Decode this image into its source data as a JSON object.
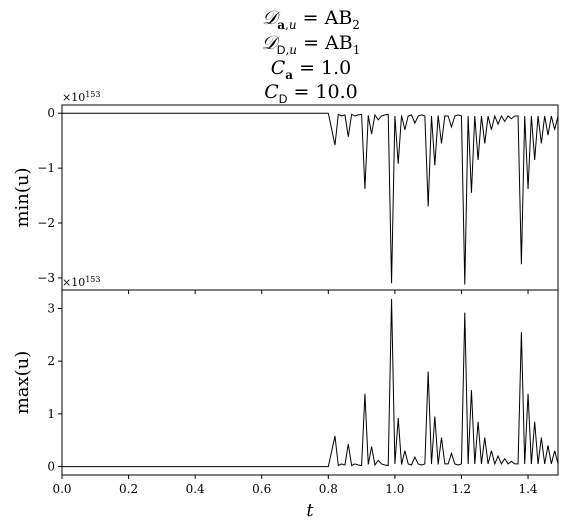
{
  "figure": {
    "title_lines": [
      "𝒟_a,u = AB₂",
      "𝒟_D,u = AB₁",
      "C_a = 1.0",
      "C_D = 10.0"
    ]
  },
  "chart_data": [
    {
      "type": "line",
      "name": "min",
      "ylabel": "min(u)",
      "xlabel": "",
      "offset_text": "×10^153",
      "offset_base": "×10",
      "offset_exp": "153",
      "xlim": [
        0.0,
        1.49
      ],
      "ylim": [
        -3.22,
        0.15
      ],
      "yticks": [
        0,
        -1,
        -2,
        -3
      ],
      "ytick_labels": [
        "0",
        "−1",
        "−2",
        "−3"
      ],
      "xticks": [
        0.0,
        0.2,
        0.4,
        0.6,
        0.8,
        1.0,
        1.2,
        1.4
      ],
      "xtick_labels": [],
      "x": [
        0.0,
        0.8,
        0.82,
        0.83,
        0.84,
        0.85,
        0.86,
        0.87,
        0.88,
        0.89,
        0.9,
        0.91,
        0.92,
        0.93,
        0.94,
        0.95,
        0.96,
        0.97,
        0.98,
        0.99,
        1.0,
        1.01,
        1.02,
        1.03,
        1.04,
        1.05,
        1.06,
        1.07,
        1.08,
        1.09,
        1.1,
        1.11,
        1.12,
        1.13,
        1.14,
        1.15,
        1.16,
        1.17,
        1.18,
        1.19,
        1.2,
        1.21,
        1.22,
        1.23,
        1.24,
        1.25,
        1.26,
        1.27,
        1.28,
        1.29,
        1.3,
        1.31,
        1.32,
        1.33,
        1.34,
        1.35,
        1.36,
        1.37,
        1.38,
        1.39,
        1.4,
        1.41,
        1.42,
        1.43,
        1.44,
        1.45,
        1.46,
        1.47,
        1.48,
        1.49
      ],
      "y": [
        0.0,
        0.0,
        -0.58,
        -0.02,
        -0.05,
        -0.03,
        -0.43,
        -0.02,
        -0.05,
        -0.03,
        -0.02,
        -1.38,
        -0.04,
        -0.38,
        -0.03,
        -0.12,
        -0.05,
        -0.03,
        -0.02,
        -3.1,
        -0.05,
        -0.92,
        -0.04,
        -0.3,
        -0.05,
        -0.03,
        -0.18,
        -0.05,
        -0.03,
        -0.05,
        -1.7,
        -0.05,
        -0.95,
        -0.04,
        -0.55,
        -0.05,
        -0.05,
        -0.25,
        -0.05,
        -0.03,
        -0.05,
        -3.12,
        -0.05,
        -1.45,
        -0.05,
        -0.85,
        -0.05,
        -0.55,
        -0.05,
        -0.3,
        -0.05,
        -0.2,
        -0.05,
        -0.15,
        -0.05,
        -0.1,
        -0.05,
        -0.05,
        -2.75,
        -0.05,
        -1.38,
        -0.05,
        -0.85,
        -0.05,
        -0.55,
        -0.05,
        -0.4,
        -0.05,
        -0.3,
        -0.05
      ]
    },
    {
      "type": "line",
      "name": "max",
      "ylabel": "max(u)",
      "xlabel": "t",
      "offset_text": "×10^153",
      "offset_base": "×10",
      "offset_exp": "153",
      "xlim": [
        0.0,
        1.49
      ],
      "ylim": [
        -0.16,
        3.35
      ],
      "yticks": [
        0,
        1,
        2,
        3
      ],
      "ytick_labels": [
        "0",
        "1",
        "2",
        "3"
      ],
      "xticks": [
        0.0,
        0.2,
        0.4,
        0.6,
        0.8,
        1.0,
        1.2,
        1.4
      ],
      "xtick_labels": [
        "0.0",
        "0.2",
        "0.4",
        "0.6",
        "0.8",
        "1.0",
        "1.2",
        "1.4"
      ],
      "x": [
        0.0,
        0.8,
        0.82,
        0.83,
        0.84,
        0.85,
        0.86,
        0.87,
        0.88,
        0.89,
        0.9,
        0.91,
        0.92,
        0.93,
        0.94,
        0.95,
        0.96,
        0.97,
        0.98,
        0.99,
        1.0,
        1.01,
        1.02,
        1.03,
        1.04,
        1.05,
        1.06,
        1.07,
        1.08,
        1.09,
        1.1,
        1.11,
        1.12,
        1.13,
        1.14,
        1.15,
        1.16,
        1.17,
        1.18,
        1.19,
        1.2,
        1.21,
        1.22,
        1.23,
        1.24,
        1.25,
        1.26,
        1.27,
        1.28,
        1.29,
        1.3,
        1.31,
        1.32,
        1.33,
        1.34,
        1.35,
        1.36,
        1.37,
        1.38,
        1.39,
        1.4,
        1.41,
        1.42,
        1.43,
        1.44,
        1.45,
        1.46,
        1.47,
        1.48,
        1.49
      ],
      "y": [
        0.0,
        0.0,
        0.58,
        0.02,
        0.05,
        0.03,
        0.43,
        0.02,
        0.05,
        0.03,
        0.02,
        1.38,
        0.04,
        0.38,
        0.03,
        0.12,
        0.05,
        0.03,
        0.02,
        3.18,
        0.05,
        0.92,
        0.04,
        0.3,
        0.05,
        0.03,
        0.18,
        0.05,
        0.03,
        0.05,
        1.8,
        0.05,
        0.95,
        0.04,
        0.55,
        0.05,
        0.05,
        0.25,
        0.05,
        0.03,
        0.05,
        2.92,
        0.05,
        1.45,
        0.05,
        0.85,
        0.05,
        0.55,
        0.05,
        0.3,
        0.05,
        0.2,
        0.05,
        0.15,
        0.05,
        0.1,
        0.05,
        0.05,
        2.55,
        0.05,
        1.38,
        0.05,
        0.85,
        0.05,
        0.55,
        0.05,
        0.4,
        0.05,
        0.3,
        0.05
      ]
    }
  ],
  "style": {
    "line_color": "#000000",
    "axis_color": "#000000",
    "background": "#ffffff"
  }
}
